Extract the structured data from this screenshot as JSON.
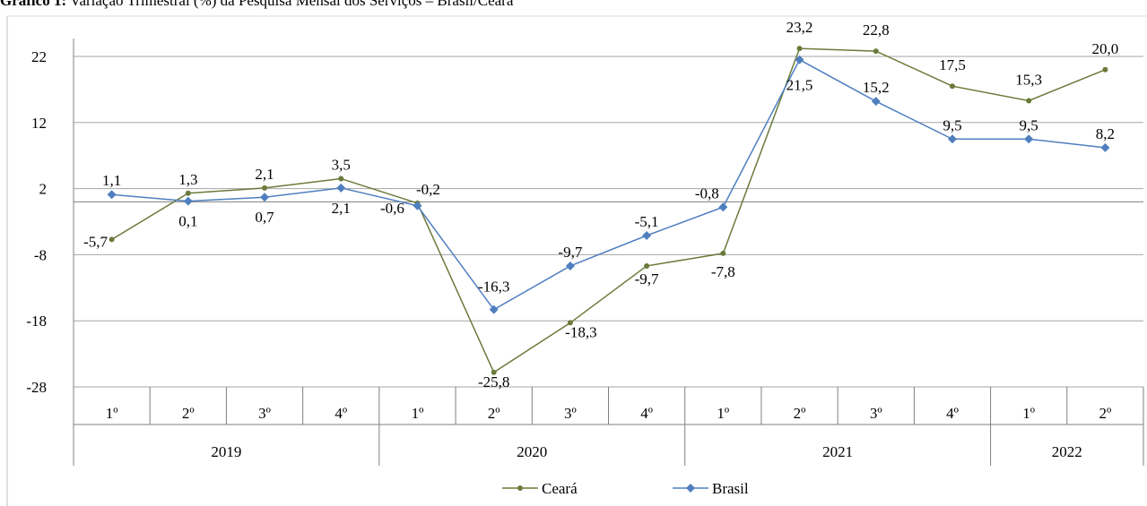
{
  "chart_data": {
    "type": "line",
    "title_bold": "Gráfico 1:",
    "title_rest": " Variação Trimestral (%) da Pesquisa Mensal dos Serviços – Brasil/Ceará",
    "quarters": [
      "1º",
      "2º",
      "3º",
      "4º",
      "1º",
      "2º",
      "3º",
      "4º",
      "1º",
      "2º",
      "3º",
      "4º",
      "1º",
      "2º"
    ],
    "years": [
      {
        "label": "2019",
        "start": 0,
        "count": 4
      },
      {
        "label": "2020",
        "start": 4,
        "count": 4
      },
      {
        "label": "2021",
        "start": 8,
        "count": 4
      },
      {
        "label": "2022",
        "start": 12,
        "count": 2
      }
    ],
    "yticks": [
      22,
      12,
      2,
      -8,
      -18,
      -28
    ],
    "ylim": [
      -28,
      22
    ],
    "grid": true,
    "legend_position": "bottom",
    "series": [
      {
        "name": "Ceará",
        "color": "#6b7a3a",
        "marker": "circle",
        "values": [
          -5.7,
          1.3,
          2.1,
          3.5,
          -0.2,
          -25.8,
          -18.3,
          -9.7,
          -7.8,
          23.2,
          22.8,
          17.5,
          15.3,
          20.0
        ],
        "labels": [
          "-5,7",
          "1,3",
          "2,1",
          "3,5",
          "-0,2",
          "-25,8",
          "-18,3",
          "-9,7",
          "-7,8",
          "23,2",
          "22,8",
          "17,5",
          "15,3",
          "20,0"
        ]
      },
      {
        "name": "Brasil",
        "color": "#4f7fbf",
        "marker": "diamond",
        "values": [
          1.1,
          0.1,
          0.7,
          2.1,
          -0.6,
          -16.3,
          -9.7,
          -5.1,
          -0.8,
          21.5,
          15.2,
          9.5,
          9.5,
          8.2
        ],
        "labels": [
          "1,1",
          "0,1",
          "0,7",
          "2,1",
          "-0,6",
          "-16,3",
          "-9,7",
          "-5,1",
          "-0,8",
          "21,5",
          "15,2",
          "9,5",
          "9,5",
          "8,2"
        ]
      }
    ]
  }
}
